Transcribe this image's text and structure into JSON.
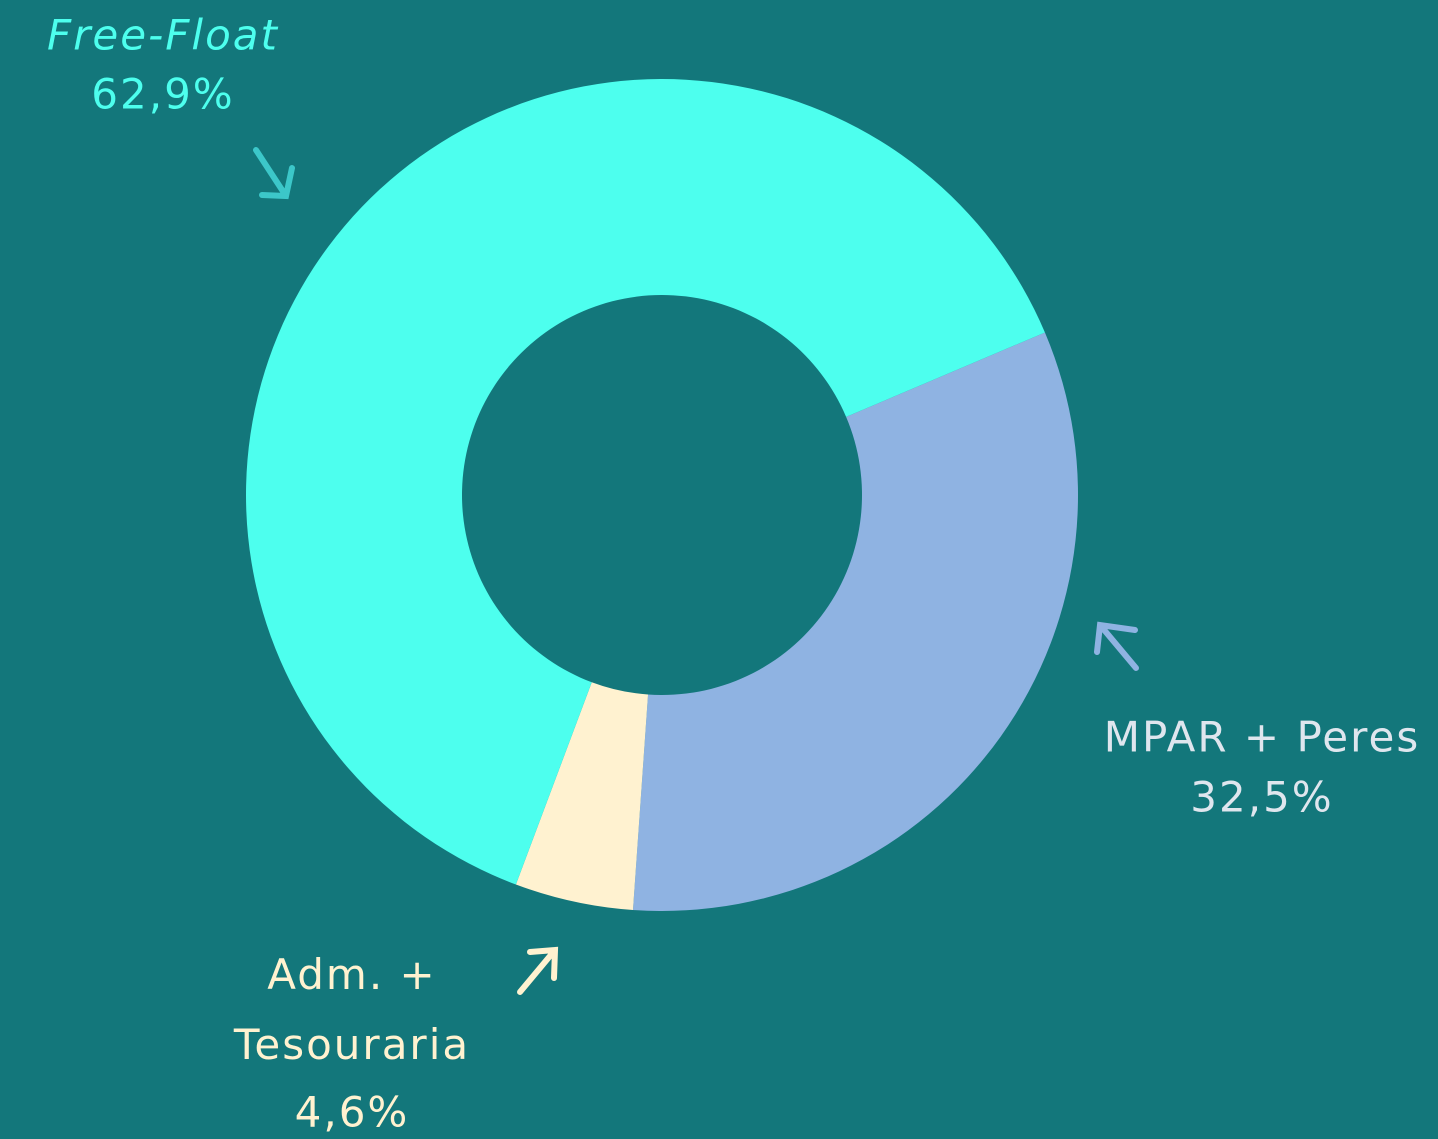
{
  "chart_data": {
    "type": "donut",
    "categories": [
      "MPAR + Peres",
      "Adm. + Tesouraria",
      "Free-Float"
    ],
    "values": [
      32.5,
      4.6,
      62.9
    ],
    "value_labels": [
      "32,5%",
      "4,6%",
      "62,9%"
    ],
    "colors": [
      "#8fb3e2",
      "#fff2d0",
      "#4dffee"
    ]
  }
}
